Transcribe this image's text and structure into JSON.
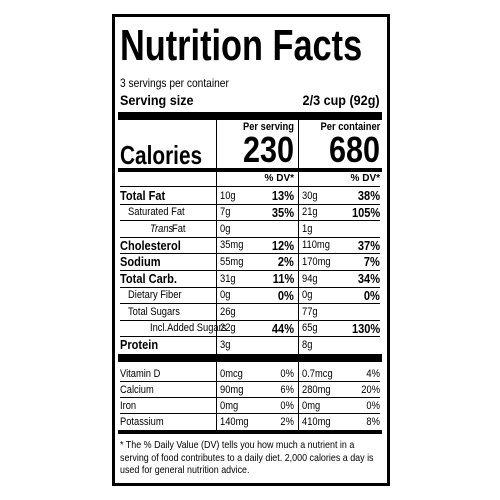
{
  "title": "Nutrition Facts",
  "servings": "3 servings per container",
  "serving_size": {
    "label": "Serving size",
    "value": "2/3 cup (92g)"
  },
  "columns": [
    "Per serving",
    "Per container"
  ],
  "calories": {
    "label": "Calories",
    "values": [
      "230",
      "680"
    ]
  },
  "dv_header": [
    "% DV*",
    "% DV*"
  ],
  "nutrients": [
    {
      "name": "Total Fat",
      "bold": true,
      "indent": 0,
      "amounts": [
        "10g",
        "30g"
      ],
      "dv": [
        "13%",
        "38%"
      ]
    },
    {
      "name": "Saturated Fat",
      "bold": false,
      "indent": 1,
      "amounts": [
        "7g",
        "21g"
      ],
      "dv": [
        "35%",
        "105%"
      ]
    },
    {
      "prefix": "Trans",
      "name": "Fat",
      "bold": false,
      "indent": 2,
      "amounts": [
        "0g",
        "1g"
      ]
    },
    {
      "name": "Cholesterol",
      "bold": true,
      "indent": 0,
      "amounts": [
        "35mg",
        "110mg"
      ],
      "dv": [
        "12%",
        "37%"
      ]
    },
    {
      "name": "Sodium",
      "bold": true,
      "indent": 0,
      "amounts": [
        "55mg",
        "170mg"
      ],
      "dv": [
        "2%",
        "7%"
      ]
    },
    {
      "name": "Total Carb.",
      "bold": true,
      "indent": 0,
      "amounts": [
        "31g",
        "94g"
      ],
      "dv": [
        "11%",
        "34%"
      ]
    },
    {
      "name": "Dietary Fiber",
      "bold": false,
      "indent": 1,
      "amounts": [
        "0g",
        "0g"
      ],
      "dv": [
        "0%",
        "0%"
      ]
    },
    {
      "name": "Total Sugars",
      "bold": false,
      "indent": 1,
      "amounts": [
        "26g",
        "77g"
      ]
    },
    {
      "name": "Incl.Added Sugars",
      "bold": false,
      "indent": 2,
      "amounts": [
        "22g",
        "65g"
      ],
      "dv": [
        "44%",
        "130%"
      ]
    },
    {
      "name": "Protein",
      "bold": true,
      "indent": 0,
      "amounts": [
        "3g",
        "8g"
      ]
    }
  ],
  "vitamins": [
    {
      "name": "Vitamin D",
      "amounts": [
        "0mcg",
        "0.7mcg"
      ],
      "dv": [
        "0%",
        "4%"
      ]
    },
    {
      "name": "Calcium",
      "amounts": [
        "90mg",
        "280mg"
      ],
      "dv": [
        "6%",
        "20%"
      ]
    },
    {
      "name": "Iron",
      "amounts": [
        "0mg",
        "0mg"
      ],
      "dv": [
        "0%",
        "0%"
      ]
    },
    {
      "name": "Potassium",
      "amounts": [
        "140mg",
        "410mg"
      ],
      "dv": [
        "2%",
        "8%"
      ]
    }
  ],
  "footnote": "* The % Daily Value (DV) tells you how much a nutrient in a serving of food contributes to a daily diet. 2,000 calories a day is used for general nutrition advice."
}
